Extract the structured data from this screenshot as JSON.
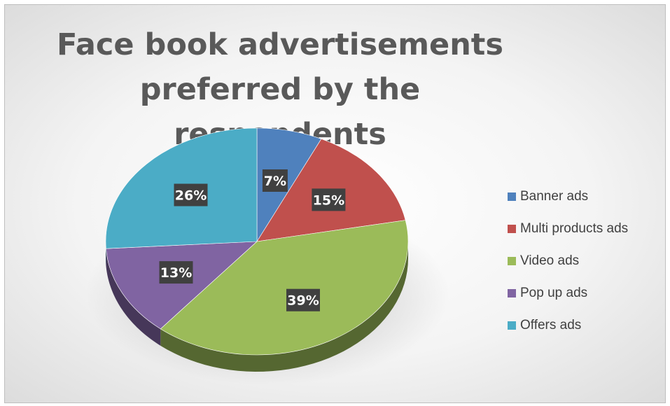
{
  "chart_data": {
    "type": "pie",
    "title": "Face book advertisements preferred by the respondents",
    "categories": [
      "Banner ads",
      "Multi products ads",
      "Video ads",
      "Pop up ads",
      "Offers ads"
    ],
    "values": [
      7,
      15,
      39,
      13,
      26
    ],
    "data_labels": [
      "7%",
      "15%",
      "39%",
      "13%",
      "26%"
    ],
    "colors": [
      "#4f81bd",
      "#c0504d",
      "#9bbb59",
      "#8064a2",
      "#4bacc6"
    ],
    "style": "3d",
    "legend_position": "right"
  }
}
